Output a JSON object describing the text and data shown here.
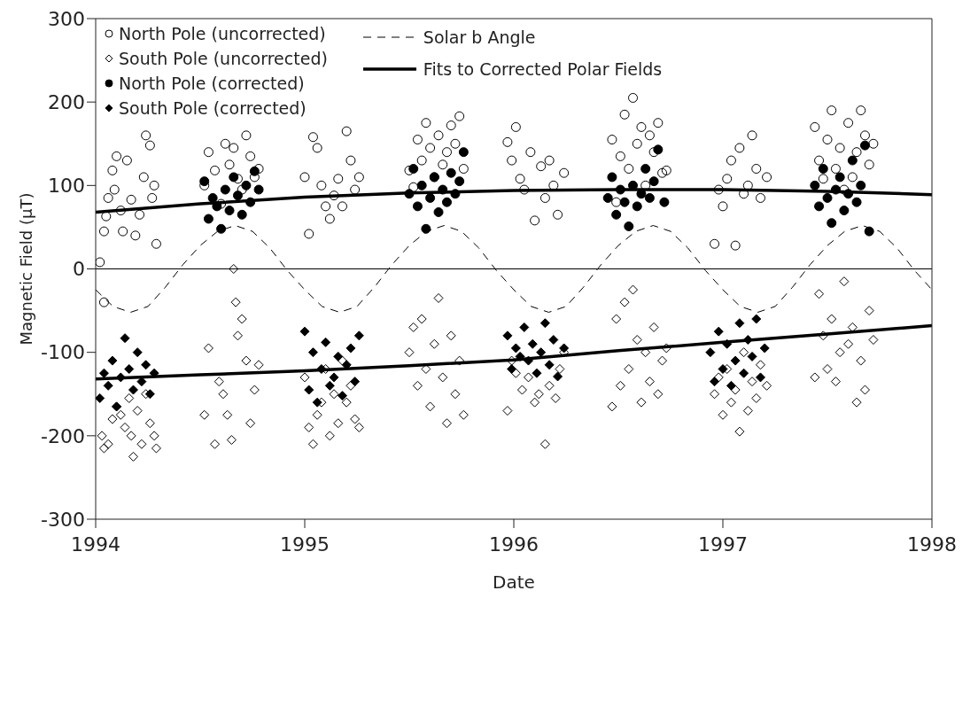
{
  "chart_data": {
    "type": "scatter",
    "xlabel": "Date",
    "ylabel": "Magnetic Field (μT)",
    "xlim": [
      1994,
      1998
    ],
    "xticks": [
      1994,
      1995,
      1996,
      1997,
      1998
    ],
    "ylim": [
      -300,
      300
    ],
    "yticks": [
      -300,
      -200,
      -100,
      0,
      100,
      200,
      300
    ],
    "legend": "top left",
    "ref_lines": [
      {
        "axis": "y",
        "value": 0,
        "color": "#000000"
      }
    ],
    "series": [
      {
        "name": "North Pole (uncorrected)",
        "marker": "circle-open",
        "color": "#000000",
        "x": [
          1994.02,
          1994.04,
          1994.04,
          1994.05,
          1994.06,
          1994.08,
          1994.09,
          1994.1,
          1994.12,
          1994.13,
          1994.15,
          1994.17,
          1994.19,
          1994.21,
          1994.23,
          1994.24,
          1994.26,
          1994.27,
          1994.28,
          1994.29,
          1994.52,
          1994.54,
          1994.57,
          1994.6,
          1994.62,
          1994.64,
          1994.66,
          1994.68,
          1994.7,
          1994.72,
          1994.74,
          1994.76,
          1994.78,
          1995.0,
          1995.02,
          1995.04,
          1995.06,
          1995.08,
          1995.1,
          1995.12,
          1995.14,
          1995.16,
          1995.18,
          1995.2,
          1995.22,
          1995.24,
          1995.26,
          1995.5,
          1995.52,
          1995.54,
          1995.56,
          1995.58,
          1995.6,
          1995.62,
          1995.64,
          1995.66,
          1995.68,
          1995.7,
          1995.72,
          1995.74,
          1995.76,
          1995.97,
          1995.99,
          1996.01,
          1996.03,
          1996.05,
          1996.08,
          1996.1,
          1996.13,
          1996.15,
          1996.17,
          1996.19,
          1996.21,
          1996.24,
          1996.47,
          1996.49,
          1996.51,
          1996.53,
          1996.55,
          1996.57,
          1996.59,
          1996.61,
          1996.63,
          1996.65,
          1996.67,
          1996.69,
          1996.71,
          1996.73,
          1996.96,
          1996.98,
          1997.0,
          1997.02,
          1997.04,
          1997.06,
          1997.08,
          1997.1,
          1997.12,
          1997.14,
          1997.16,
          1997.18,
          1997.21,
          1997.44,
          1997.46,
          1997.48,
          1997.5,
          1997.52,
          1997.54,
          1997.56,
          1997.58,
          1997.6,
          1997.62,
          1997.64,
          1997.66,
          1997.68,
          1997.7,
          1997.72
        ],
        "values": [
          8,
          45,
          -40,
          63,
          85,
          118,
          95,
          135,
          70,
          45,
          130,
          83,
          40,
          65,
          110,
          160,
          148,
          85,
          100,
          30,
          100,
          140,
          118,
          78,
          150,
          125,
          145,
          108,
          95,
          160,
          135,
          110,
          120,
          110,
          42,
          158,
          145,
          100,
          75,
          60,
          88,
          108,
          75,
          165,
          130,
          95,
          110,
          118,
          98,
          155,
          130,
          175,
          145,
          110,
          160,
          125,
          140,
          172,
          150,
          183,
          120,
          152,
          130,
          170,
          108,
          95,
          140,
          58,
          123,
          85,
          130,
          100,
          65,
          115,
          155,
          80,
          135,
          185,
          120,
          205,
          150,
          170,
          100,
          160,
          140,
          175,
          115,
          118,
          30,
          95,
          75,
          108,
          130,
          28,
          145,
          90,
          100,
          160,
          120,
          85,
          110,
          170,
          130,
          108,
          155,
          190,
          120,
          145,
          95,
          175,
          110,
          140,
          190,
          160,
          125,
          150
        ]
      },
      {
        "name": "South Pole (uncorrected)",
        "marker": "diamond-open",
        "color": "#000000",
        "x": [
          1994.03,
          1994.04,
          1994.06,
          1994.08,
          1994.1,
          1994.12,
          1994.14,
          1994.16,
          1994.17,
          1994.18,
          1994.2,
          1994.22,
          1994.24,
          1994.26,
          1994.28,
          1994.29,
          1994.52,
          1994.54,
          1994.57,
          1994.59,
          1994.61,
          1994.63,
          1994.65,
          1994.66,
          1994.67,
          1994.68,
          1994.7,
          1994.72,
          1994.74,
          1994.76,
          1994.78,
          1995.0,
          1995.02,
          1995.04,
          1995.06,
          1995.08,
          1995.1,
          1995.12,
          1995.14,
          1995.16,
          1995.18,
          1995.2,
          1995.22,
          1995.24,
          1995.26,
          1995.5,
          1995.52,
          1995.54,
          1995.56,
          1995.58,
          1995.6,
          1995.62,
          1995.64,
          1995.66,
          1995.68,
          1995.7,
          1995.72,
          1995.74,
          1995.76,
          1995.97,
          1995.99,
          1996.01,
          1996.04,
          1996.07,
          1996.1,
          1996.12,
          1996.15,
          1996.17,
          1996.2,
          1996.22,
          1996.24,
          1996.47,
          1996.49,
          1996.51,
          1996.53,
          1996.55,
          1996.57,
          1996.59,
          1996.61,
          1996.63,
          1996.65,
          1996.67,
          1996.69,
          1996.71,
          1996.73,
          1996.96,
          1996.98,
          1997.0,
          1997.02,
          1997.04,
          1997.06,
          1997.08,
          1997.1,
          1997.12,
          1997.14,
          1997.16,
          1997.18,
          1997.21,
          1997.44,
          1997.46,
          1997.48,
          1997.5,
          1997.52,
          1997.54,
          1997.56,
          1997.58,
          1997.6,
          1997.62,
          1997.64,
          1997.66,
          1997.68,
          1997.7,
          1997.72
        ],
        "values": [
          -200,
          -215,
          -210,
          -180,
          -165,
          -175,
          -190,
          -155,
          -200,
          -225,
          -170,
          -210,
          -150,
          -185,
          -200,
          -215,
          -175,
          -95,
          -210,
          -135,
          -150,
          -175,
          -205,
          0,
          -40,
          -80,
          -60,
          -110,
          -185,
          -145,
          -115,
          -130,
          -190,
          -210,
          -175,
          -160,
          -120,
          -200,
          -150,
          -185,
          -110,
          -160,
          -140,
          -180,
          -190,
          -100,
          -70,
          -140,
          -60,
          -120,
          -165,
          -90,
          -35,
          -130,
          -185,
          -80,
          -150,
          -110,
          -175,
          -170,
          -110,
          -125,
          -145,
          -130,
          -160,
          -150,
          -210,
          -140,
          -155,
          -120,
          -100,
          -165,
          -60,
          -140,
          -40,
          -120,
          -25,
          -85,
          -160,
          -100,
          -135,
          -70,
          -150,
          -110,
          -95,
          -150,
          -130,
          -175,
          -120,
          -160,
          -145,
          -195,
          -100,
          -170,
          -135,
          -155,
          -115,
          -140,
          -130,
          -30,
          -80,
          -120,
          -60,
          -135,
          -100,
          -15,
          -90,
          -70,
          -160,
          -110,
          -145,
          -50,
          -85
        ]
      },
      {
        "name": "North Pole (corrected)",
        "marker": "circle",
        "color": "#000000",
        "x": [
          1994.52,
          1994.54,
          1994.56,
          1994.58,
          1994.6,
          1994.62,
          1994.64,
          1994.66,
          1994.68,
          1994.7,
          1994.72,
          1994.74,
          1994.76,
          1994.78,
          1995.5,
          1995.52,
          1995.54,
          1995.56,
          1995.58,
          1995.6,
          1995.62,
          1995.64,
          1995.66,
          1995.68,
          1995.7,
          1995.72,
          1995.74,
          1995.76,
          1996.45,
          1996.47,
          1996.49,
          1996.51,
          1996.53,
          1996.55,
          1996.57,
          1996.59,
          1996.61,
          1996.63,
          1996.65,
          1996.67,
          1996.69,
          1996.72,
          1997.44,
          1997.46,
          1997.48,
          1997.5,
          1997.52,
          1997.54,
          1997.56,
          1997.58,
          1997.6,
          1997.62,
          1997.64,
          1997.66,
          1997.68,
          1997.7
        ],
        "values": [
          105,
          60,
          85,
          75,
          48,
          95,
          70,
          110,
          88,
          65,
          100,
          80,
          117,
          95,
          90,
          120,
          75,
          100,
          48,
          85,
          110,
          68,
          95,
          80,
          115,
          90,
          105,
          140,
          85,
          110,
          65,
          95,
          80,
          51,
          100,
          75,
          90,
          120,
          85,
          105,
          143,
          80,
          100,
          75,
          120,
          85,
          55,
          95,
          110,
          70,
          90,
          130,
          80,
          100,
          148,
          45
        ]
      },
      {
        "name": "South Pole (corrected)",
        "marker": "diamond",
        "color": "#000000",
        "x": [
          1994.02,
          1994.04,
          1994.06,
          1994.08,
          1994.1,
          1994.12,
          1994.14,
          1994.16,
          1994.18,
          1994.2,
          1994.22,
          1994.24,
          1994.26,
          1994.28,
          1995.0,
          1995.02,
          1995.04,
          1995.06,
          1995.08,
          1995.1,
          1995.12,
          1995.14,
          1995.16,
          1995.18,
          1995.2,
          1995.22,
          1995.24,
          1995.26,
          1995.97,
          1995.99,
          1996.01,
          1996.03,
          1996.05,
          1996.07,
          1996.09,
          1996.11,
          1996.13,
          1996.15,
          1996.17,
          1996.19,
          1996.21,
          1996.24,
          1996.94,
          1996.96,
          1996.98,
          1997.0,
          1997.02,
          1997.04,
          1997.06,
          1997.08,
          1997.1,
          1997.12,
          1997.14,
          1997.16,
          1997.18,
          1997.2
        ],
        "values": [
          -155,
          -125,
          -140,
          -110,
          -165,
          -130,
          -83,
          -120,
          -145,
          -100,
          -135,
          -115,
          -150,
          -125,
          -75,
          -145,
          -100,
          -160,
          -120,
          -88,
          -140,
          -130,
          -105,
          -152,
          -115,
          -95,
          -135,
          -80,
          -80,
          -120,
          -95,
          -105,
          -70,
          -110,
          -90,
          -125,
          -100,
          -65,
          -115,
          -85,
          -129,
          -95,
          -100,
          -135,
          -75,
          -120,
          -90,
          -140,
          -110,
          -65,
          -125,
          -85,
          -105,
          -60,
          -130,
          -95
        ]
      },
      {
        "name": "Solar b Angle",
        "type": "line",
        "line_style": "dashed",
        "color": "#000000",
        "x": [
          1994.0,
          1994.083,
          1994.167,
          1994.25,
          1994.333,
          1994.417,
          1994.5,
          1994.583,
          1994.667,
          1994.75,
          1994.833,
          1994.917,
          1995.0,
          1995.083,
          1995.167,
          1995.25,
          1995.333,
          1995.417,
          1995.5,
          1995.583,
          1995.667,
          1995.75,
          1995.833,
          1995.917,
          1996.0,
          1996.083,
          1996.167,
          1996.25,
          1996.333,
          1996.417,
          1996.5,
          1996.583,
          1996.667,
          1996.75,
          1996.833,
          1996.917,
          1997.0,
          1997.083,
          1997.167,
          1997.25,
          1997.333,
          1997.417,
          1997.5,
          1997.583,
          1997.667,
          1997.75,
          1997.833,
          1997.917,
          1998.0
        ],
        "values": [
          -25,
          -45,
          -52,
          -45,
          -22,
          5,
          28,
          45,
          52,
          45,
          25,
          -2,
          -25,
          -45,
          -52,
          -45,
          -22,
          5,
          28,
          45,
          52,
          45,
          25,
          -2,
          -25,
          -45,
          -52,
          -45,
          -22,
          5,
          28,
          45,
          52,
          45,
          25,
          -2,
          -25,
          -45,
          -52,
          -45,
          -22,
          5,
          28,
          45,
          52,
          45,
          25,
          -2,
          -25
        ]
      },
      {
        "name": "Fits to Corrected Polar Fields",
        "type": "line",
        "line_style": "solid",
        "color": "#000000",
        "x": [
          1994,
          1994.5,
          1995,
          1995.5,
          1996,
          1996.5,
          1997,
          1997.5,
          1998
        ],
        "values": [
          68,
          78,
          86,
          91,
          94,
          95,
          95,
          93,
          89
        ]
      },
      {
        "type": "line",
        "line_style": "solid",
        "color": "#000000",
        "x": [
          1994,
          1994.5,
          1995,
          1995.5,
          1996,
          1996.5,
          1997,
          1997.5,
          1998
        ],
        "values": [
          -132,
          -127,
          -122,
          -116,
          -109,
          -98,
          -88,
          -78,
          -68
        ]
      }
    ]
  }
}
